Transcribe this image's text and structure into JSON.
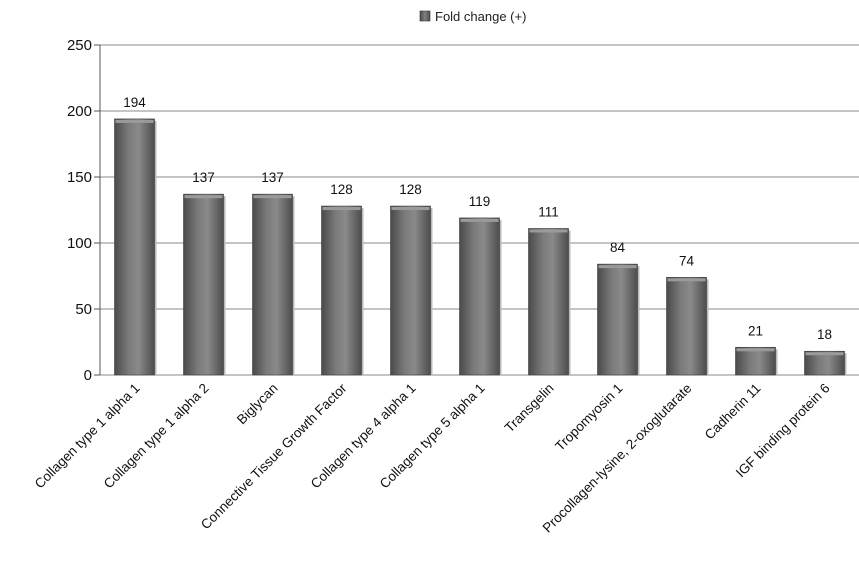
{
  "chart_data": {
    "type": "bar",
    "title": "",
    "xlabel": "",
    "ylabel": "",
    "ylim": [
      0,
      250
    ],
    "yticks": [
      0,
      50,
      100,
      150,
      200,
      250
    ],
    "grid": true,
    "legend_position": "top",
    "series": [
      {
        "name": "Fold change (+)",
        "color": "#6b6b6b",
        "values": [
          194,
          137,
          137,
          128,
          128,
          119,
          111,
          84,
          74,
          21,
          18
        ]
      }
    ],
    "categories": [
      "Collagen type 1 alpha 1",
      "Collagen type 1 alpha 2",
      "Biglycan",
      "Connective Tissue Growth Factor",
      "Collagen type 4 alpha 1",
      "Collagen type 5 alpha 1",
      "Transgelin",
      "Tropomyosin 1",
      "Procollagen-lysine, 2-oxoglutarate",
      "Cadherin 11",
      "IGF binding protein 6"
    ],
    "data_labels": [
      "194",
      "137",
      "137",
      "128",
      "128",
      "119",
      "111",
      "84",
      "74",
      "21",
      "18"
    ]
  }
}
